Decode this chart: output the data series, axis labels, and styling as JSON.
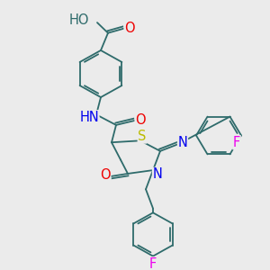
{
  "bg_color": "#ebebeb",
  "bond_color": "#2e6b6b",
  "atom_colors": {
    "N": "#0000ee",
    "O": "#ee0000",
    "S": "#bbbb00",
    "F": "#ee00ee",
    "H": "#2e6b6b",
    "C": "#2e6b6b"
  },
  "font_size": 9.5
}
